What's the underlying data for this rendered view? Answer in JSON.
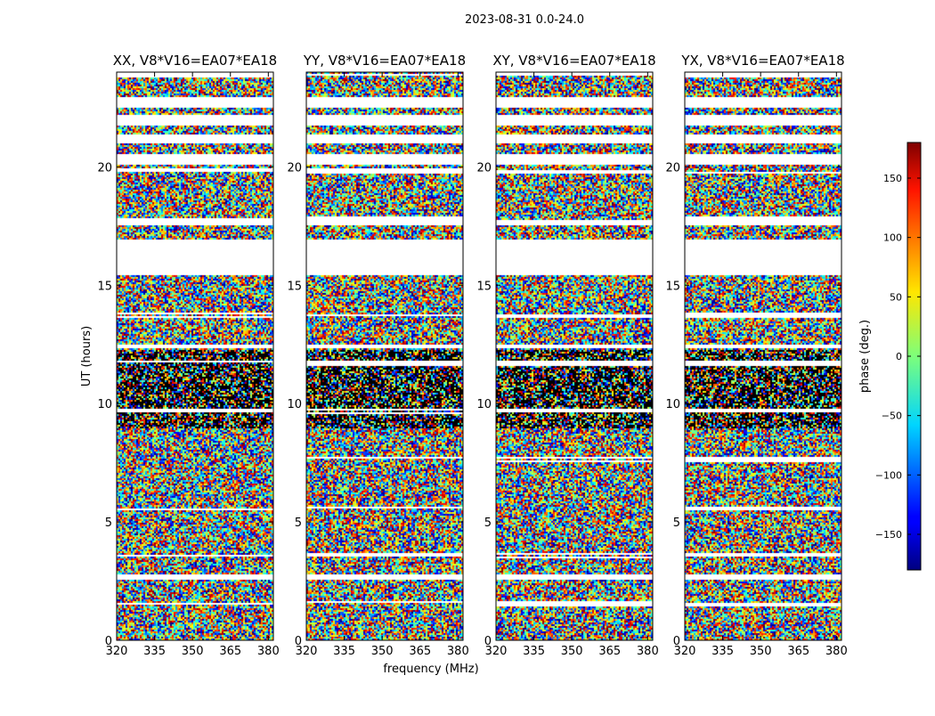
{
  "figure": {
    "suptitle": "2023-08-31 0.0-24.0",
    "xlabel": "frequency (MHz)",
    "ylabel": "UT (hours)"
  },
  "chart_data": {
    "type": "heatmap",
    "xlim": [
      320,
      382
    ],
    "ylim": [
      0,
      24
    ],
    "x_ticks": [
      320,
      335,
      350,
      365,
      380
    ],
    "y_ticks": [
      0,
      5,
      10,
      15,
      20
    ],
    "panels": [
      {
        "title": "XX, V8*V16=EA07*EA18",
        "pol": "XX"
      },
      {
        "title": "YY, V8*V16=EA07*EA18",
        "pol": "YY"
      },
      {
        "title": "XY, V8*V16=EA07*EA18",
        "pol": "XY"
      },
      {
        "title": "YX, V8*V16=EA07*EA18",
        "pol": "YX"
      }
    ],
    "blank_time_ranges_hours": [
      [
        2.6,
        2.8
      ],
      [
        12.4,
        12.5
      ],
      [
        15.45,
        17.0
      ],
      [
        17.6,
        17.8
      ],
      [
        20.1,
        20.6
      ],
      [
        21.0,
        21.4
      ],
      [
        21.8,
        22.2
      ],
      [
        22.5,
        23.0
      ]
    ],
    "colorbar": {
      "label": "phase (deg.)",
      "range": [
        -180,
        180
      ],
      "ticks": [
        -150,
        -100,
        -50,
        0,
        50,
        100,
        150
      ],
      "colormap": "jet"
    }
  }
}
